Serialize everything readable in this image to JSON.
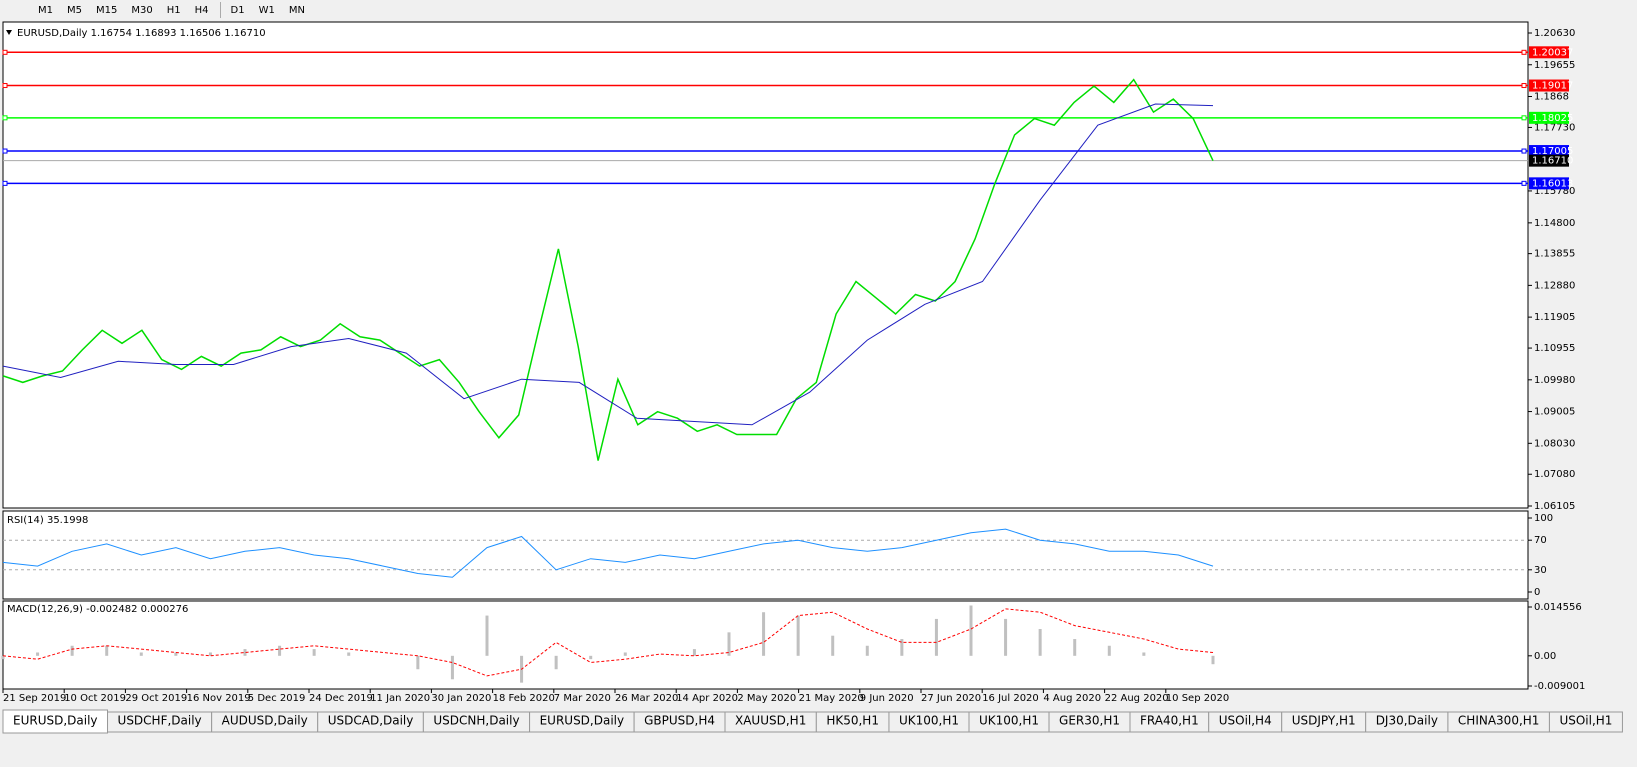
{
  "toolbar": {
    "timeframes": [
      "M1",
      "M5",
      "M15",
      "M30",
      "H1",
      "H4",
      "D1",
      "W1",
      "MN"
    ]
  },
  "chart_data": [
    {
      "type": "line",
      "title": "EURUSD,Daily  1.16754 1.16893 1.16506 1.16710",
      "x_labels": [
        "21 Sep 2019",
        "10 Oct 2019",
        "29 Oct 2019",
        "16 Nov 2019",
        "5 Dec 2019",
        "24 Dec 2019",
        "11 Jan 2020",
        "30 Jan 2020",
        "18 Feb 2020",
        "7 Mar 2020",
        "26 Mar 2020",
        "14 Apr 2020",
        "2 May 2020",
        "21 May 2020",
        "9 Jun 2020",
        "27 Jun 2020",
        "16 Jul 2020",
        "4 Aug 2020",
        "22 Aug 2020",
        "10 Sep 2020"
      ],
      "series": [
        {
          "color": "#00dd00",
          "values": [
            1.101,
            1.099,
            1.101,
            1.1025,
            1.109,
            1.115,
            1.111,
            1.115,
            1.106,
            1.103,
            1.107,
            1.104,
            1.108,
            1.109,
            1.113,
            1.11,
            1.112,
            1.117,
            1.113,
            1.112,
            1.108,
            1.104,
            1.106,
            1.099,
            1.09,
            1.082,
            1.089,
            1.115,
            1.14,
            1.11,
            1.075,
            1.1,
            1.086,
            1.09,
            1.088,
            1.084,
            1.086,
            1.083,
            1.083,
            1.083,
            1.094,
            1.099,
            1.12,
            1.13,
            1.125,
            1.12,
            1.126,
            1.124,
            1.13,
            1.143,
            1.16,
            1.175,
            1.18,
            1.178,
            1.185,
            1.19,
            1.185,
            1.192,
            1.182,
            1.186,
            1.18,
            1.1671
          ]
        },
        {
          "color": "#2020c0",
          "values": [
            1.104,
            1.1005,
            1.1055,
            1.1045,
            1.1045,
            1.11,
            1.1125,
            1.108,
            1.094,
            1.1,
            1.099,
            1.088,
            1.087,
            1.086,
            1.096,
            1.112,
            1.123,
            1.13,
            1.155,
            1.178,
            1.1845,
            1.184
          ]
        }
      ],
      "ylim": [
        1.06105,
        1.2063
      ],
      "yticks": [
        {
          "value": 1.2063,
          "label": "1.20630"
        },
        1.19655,
        1.1868,
        {
          "value": 1.1773,
          "label": "1.17730"
        },
        {
          "value": 1.1578,
          "label": "1.15780"
        },
        {
          "value": 1.148,
          "label": "1.14800"
        },
        1.13855,
        {
          "value": 1.1288,
          "label": "1.12880"
        },
        1.11905,
        1.10955,
        {
          "value": 1.0998,
          "label": "1.09980"
        },
        1.09005,
        {
          "value": 1.0803,
          "label": "1.08030"
        },
        {
          "value": 1.0708,
          "label": "1.07080"
        },
        1.06105
      ],
      "levels": [
        {
          "value": 1.20037,
          "color": "#ff0000"
        },
        {
          "value": 1.19017,
          "color": "#ff0000"
        },
        {
          "value": 1.18025,
          "color": "#00ff00"
        },
        {
          "value": 1.17005,
          "color": "#0000ff"
        },
        {
          "value": 1.16013,
          "color": "#0000ff"
        },
        {
          "value": 1.1671,
          "label": "1.16710",
          "color": "#000000"
        }
      ]
    },
    {
      "type": "line",
      "title": "RSI(14) 35.1998",
      "series": [
        {
          "color": "#1e90ff",
          "values": [
            40,
            35,
            55,
            65,
            50,
            60,
            45,
            55,
            60,
            50,
            45,
            35,
            25,
            20,
            60,
            75,
            30,
            45,
            40,
            50,
            45,
            55,
            65,
            70,
            60,
            55,
            60,
            70,
            80,
            85,
            70,
            65,
            55,
            55,
            50,
            35
          ]
        }
      ],
      "ylim": [
        0,
        100
      ],
      "yticks": [
        100,
        70,
        30,
        0
      ]
    },
    {
      "type": "macd",
      "title": "MACD(12,26,9) -0.002482 0.000276",
      "series": [
        {
          "color": "#c0c0c0",
          "values": [
            -0.001,
            0.001,
            0.003,
            0.003,
            0.001,
            0.001,
            0.001,
            0.002,
            0.003,
            0.002,
            0.001,
            0,
            -0.004,
            -0.007,
            0.012,
            -0.008,
            -0.004,
            -0.001,
            0.001,
            0,
            0.002,
            0.007,
            0.013,
            0.012,
            0.006,
            0.003,
            0.005,
            0.011,
            0.015,
            0.011,
            0.008,
            0.005,
            0.003,
            0.001,
            0,
            -0.0025
          ]
        },
        {
          "color": "#ff0000",
          "values": [
            0,
            -0.001,
            0.002,
            0.003,
            0.002,
            0.001,
            0,
            0.001,
            0.002,
            0.003,
            0.002,
            0.001,
            0,
            -0.002,
            -0.006,
            -0.004,
            0.004,
            -0.002,
            -0.001,
            0.0005,
            0,
            0.001,
            0.004,
            0.012,
            0.013,
            0.008,
            0.004,
            0.004,
            0.008,
            0.014,
            0.013,
            0.009,
            0.007,
            0.005,
            0.002,
            0.001
          ]
        }
      ],
      "ylim": [
        -0.009001,
        0.014556
      ],
      "yticks": [
        0.014556,
        {
          "value": 0,
          "label": "0.00"
        },
        -0.009001
      ]
    }
  ],
  "tabs": [
    "EURUSD,Daily",
    "USDCHF,Daily",
    "AUDUSD,Daily",
    "USDCAD,Daily",
    "USDCNH,Daily",
    "EURUSD,Daily",
    "GBPUSD,H4",
    "XAUUSD,H1",
    "HK50,H1",
    "UK100,H1",
    "UK100,H1",
    "GER30,H1",
    "FRA40,H1",
    "USOil,H4",
    "USDJPY,H1",
    "DJ30,Daily",
    "CHINA300,H1",
    "USOil,H1"
  ]
}
